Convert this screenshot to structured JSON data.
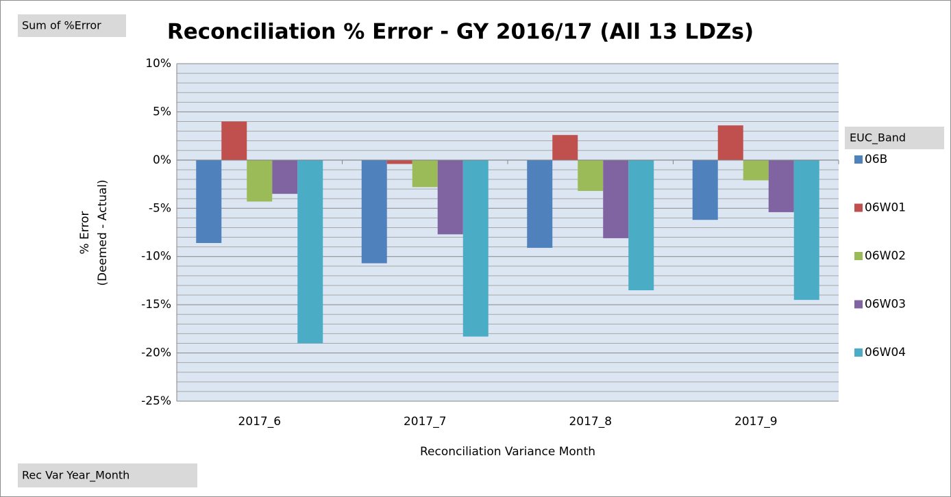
{
  "chart_data": {
    "type": "bar",
    "title": "Reconciliation % Error - GY 2016/17 (All 13 LDZs)",
    "value_field": "Sum of %Error",
    "legend_field": "EUC_Band",
    "axis_field": "Rec Var Year_Month",
    "xlabel": "Reconciliation Variance Month",
    "ylabel": [
      "% Error",
      "(Deemed - Actual)"
    ],
    "categories": [
      "2017_6",
      "2017_7",
      "2017_8",
      "2017_9"
    ],
    "series": [
      {
        "name": "06B",
        "color": "#4f81bd",
        "values": [
          -8.6,
          -10.7,
          -9.1,
          -6.2
        ]
      },
      {
        "name": "06W01",
        "color": "#c0504d",
        "values": [
          4.0,
          -0.4,
          2.6,
          3.6
        ]
      },
      {
        "name": "06W02",
        "color": "#9bbb59",
        "values": [
          -4.3,
          -2.8,
          -3.2,
          -2.1
        ]
      },
      {
        "name": "06W03",
        "color": "#8064a2",
        "values": [
          -3.5,
          -7.7,
          -8.1,
          -5.4
        ]
      },
      {
        "name": "06W04",
        "color": "#4bacc6",
        "values": [
          -19.0,
          -18.3,
          -13.5,
          -14.5
        ]
      }
    ],
    "ylim": [
      -25,
      10
    ],
    "yticks": [
      {
        "value": -25,
        "label": "-25%"
      },
      {
        "value": -20,
        "label": "-20%"
      },
      {
        "value": -15,
        "label": "-15%"
      },
      {
        "value": -10,
        "label": "-10%"
      },
      {
        "value": -5,
        "label": "-5%"
      },
      {
        "value": 0,
        "label": "0%"
      },
      {
        "value": 5,
        "label": "5%"
      },
      {
        "value": 10,
        "label": "10%"
      }
    ],
    "grid": true,
    "minor_grid": true,
    "legend": "right"
  }
}
